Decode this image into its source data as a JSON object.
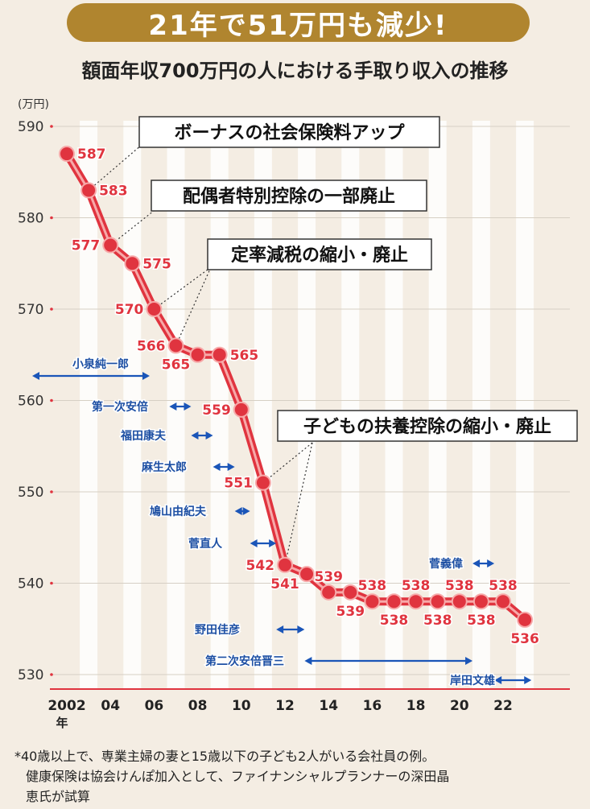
{
  "header": {
    "title": "21年で51万円も減少!",
    "subtitle": "額面年収700万円の人における手取り収入の推移"
  },
  "colors": {
    "line": "#e0343f",
    "accent": "#b0852f",
    "arrow": "#1a55b8",
    "pm_label": "#1d4fa3",
    "text": "#222222"
  },
  "chart_data": {
    "type": "line",
    "title": "額面年収700万円の人における手取り収入の推移",
    "ylabel": "(万円)",
    "xlabel": "年",
    "ylim": [
      530,
      590
    ],
    "yticks": [
      590,
      580,
      570,
      560,
      550,
      540,
      530
    ],
    "x": [
      2002,
      2003,
      2004,
      2005,
      2006,
      2007,
      2008,
      2009,
      2010,
      2011,
      2012,
      2013,
      2014,
      2015,
      2016,
      2017,
      2018,
      2019,
      2020,
      2021,
      2022,
      2023
    ],
    "values": [
      587,
      583,
      577,
      575,
      570,
      566,
      565,
      565,
      559,
      551,
      542,
      541,
      539,
      539,
      538,
      538,
      538,
      538,
      538,
      538,
      538,
      536
    ],
    "xticks": [
      {
        "year": 2002,
        "label": "2002"
      },
      {
        "year": 2004,
        "label": "04"
      },
      {
        "year": 2006,
        "label": "06"
      },
      {
        "year": 2008,
        "label": "08"
      },
      {
        "year": 2010,
        "label": "10"
      },
      {
        "year": 2012,
        "label": "12"
      },
      {
        "year": 2014,
        "label": "14"
      },
      {
        "year": 2016,
        "label": "16"
      },
      {
        "year": 2018,
        "label": "18"
      },
      {
        "year": 2020,
        "label": "20"
      },
      {
        "year": 2022,
        "label": "22"
      }
    ],
    "xtick_suffix": "年",
    "point_labels": [
      {
        "year": 2002,
        "text": "587",
        "pos": "right"
      },
      {
        "year": 2003,
        "text": "583",
        "pos": "right"
      },
      {
        "year": 2004,
        "text": "577",
        "pos": "left"
      },
      {
        "year": 2005,
        "text": "575",
        "pos": "right"
      },
      {
        "year": 2006,
        "text": "570",
        "pos": "left"
      },
      {
        "year": 2007,
        "text": "566",
        "pos": "left"
      },
      {
        "year": 2007,
        "text": "565",
        "pos": "below"
      },
      {
        "year": 2009,
        "text": "565",
        "pos": "right"
      },
      {
        "year": 2010,
        "text": "559",
        "pos": "left"
      },
      {
        "year": 2011,
        "text": "551",
        "pos": "left"
      },
      {
        "year": 2012,
        "text": "542",
        "pos": "left"
      },
      {
        "year": 2012,
        "text": "541",
        "pos": "below"
      },
      {
        "year": 2014,
        "text": "539",
        "pos": "above"
      },
      {
        "year": 2015,
        "text": "539",
        "pos": "below"
      },
      {
        "year": 2016,
        "text": "538",
        "pos": "above"
      },
      {
        "year": 2017,
        "text": "538",
        "pos": "below"
      },
      {
        "year": 2018,
        "text": "538",
        "pos": "above"
      },
      {
        "year": 2019,
        "text": "538",
        "pos": "below"
      },
      {
        "year": 2020,
        "text": "538",
        "pos": "above"
      },
      {
        "year": 2021,
        "text": "538",
        "pos": "below"
      },
      {
        "year": 2022,
        "text": "538",
        "pos": "above"
      },
      {
        "year": 2023,
        "text": "536",
        "pos": "below"
      }
    ],
    "annotations": [
      {
        "text": "ボーナスの社会保険料アップ",
        "targets": [
          2003
        ],
        "box": "a1"
      },
      {
        "text": "配偶者特別控除の一部廃止",
        "targets": [
          2004
        ],
        "box": "a2"
      },
      {
        "text": "定率減税の縮小・廃止",
        "targets": [
          2006,
          2007
        ],
        "box": "a3"
      },
      {
        "text": "子どもの扶養控除の縮小・廃止",
        "targets": [
          2011,
          2012
        ],
        "box": "a4"
      }
    ],
    "prime_ministers": [
      {
        "name": "小泉純一郎",
        "start": 2001.3,
        "end": 2006.7
      },
      {
        "name": "第一次安倍",
        "start": 2006.7,
        "end": 2007.7
      },
      {
        "name": "福田康夫",
        "start": 2007.7,
        "end": 2008.7
      },
      {
        "name": "麻生太郎",
        "start": 2008.7,
        "end": 2009.7
      },
      {
        "name": "鳩山由紀夫",
        "start": 2009.7,
        "end": 2010.4
      },
      {
        "name": "菅直人",
        "start": 2010.4,
        "end": 2011.6
      },
      {
        "name": "野田佳彦",
        "start": 2011.6,
        "end": 2012.9
      },
      {
        "name": "第二次安倍晋三",
        "start": 2012.9,
        "end": 2020.6
      },
      {
        "name": "菅義偉",
        "start": 2020.6,
        "end": 2021.6
      },
      {
        "name": "岸田文雄",
        "start": 2021.6,
        "end": 2023.3
      }
    ]
  },
  "footnote": {
    "line1": "*40歳以上で、専業主婦の妻と15歳以下の子ども2人がいる会社員の例。",
    "line2": "健康保険は協会けんぽ加入として、ファイナンシャルプランナーの深田晶",
    "line3": "恵氏が試算"
  }
}
